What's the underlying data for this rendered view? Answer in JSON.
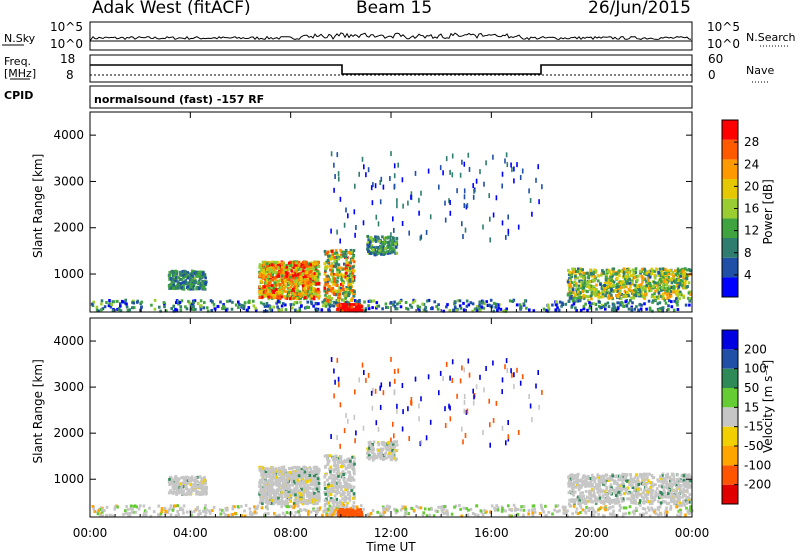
{
  "header": {
    "station": "Adak West (fitACF)",
    "beam": "Beam 15",
    "date": "26/Jun/2015"
  },
  "strips": {
    "nsky_label": "N.Sky",
    "nsky_ticks": [
      "10^5",
      "10^0"
    ],
    "nsearch_label": "N.Search",
    "nsearch_ticks": [
      "10^5",
      "10^0"
    ],
    "freq_label": "Freq.",
    "freq_unit": "[MHz]",
    "freq_ticks": [
      "18",
      "8"
    ],
    "nave_label": "Nave",
    "nave_ticks": [
      "60",
      "0"
    ],
    "cpid_label": "CPID",
    "cpid_text": "normalsound (fast) -157 RF"
  },
  "colors": {
    "power_scale": [
      "#0000ff",
      "#1f4fa6",
      "#2e7d6e",
      "#3fa33f",
      "#9acd32",
      "#e6c800",
      "#ff9900",
      "#ff5a00",
      "#ff0000"
    ],
    "velocity_scale": [
      "#e00000",
      "#ff5500",
      "#ffa500",
      "#f2d000",
      "#c6c6c6",
      "#66cc33",
      "#2e8b57",
      "#1f4fa6",
      "#0000e0"
    ]
  },
  "chart_data": [
    {
      "type": "heatmap",
      "title": "Power",
      "ylabel": "Slant Range [km]",
      "xlabel": "Time UT",
      "x_ticks": [
        "00:00",
        "04:00",
        "08:00",
        "12:00",
        "16:00",
        "20:00",
        "00:00"
      ],
      "y_ticks": [
        "1000",
        "2000",
        "3000",
        "4000"
      ],
      "ylim": [
        180,
        4500
      ],
      "colorbar_label": "Power [dB]",
      "colorbar_ticks": [
        "4",
        "8",
        "12",
        "16",
        "20",
        "24",
        "28"
      ]
    },
    {
      "type": "heatmap",
      "title": "Velocity",
      "ylabel": "Slant Range [km]",
      "xlabel": "Time UT",
      "x_ticks": [
        "00:00",
        "04:00",
        "08:00",
        "12:00",
        "16:00",
        "20:00",
        "00:00"
      ],
      "y_ticks": [
        "1000",
        "2000",
        "3000",
        "4000"
      ],
      "ylim": [
        180,
        4500
      ],
      "colorbar_label": "Velocity [m s⁻¹]",
      "colorbar_ticks": [
        "-200",
        "-100",
        "-50",
        "-15",
        "15",
        "50",
        "100",
        "200"
      ]
    }
  ]
}
